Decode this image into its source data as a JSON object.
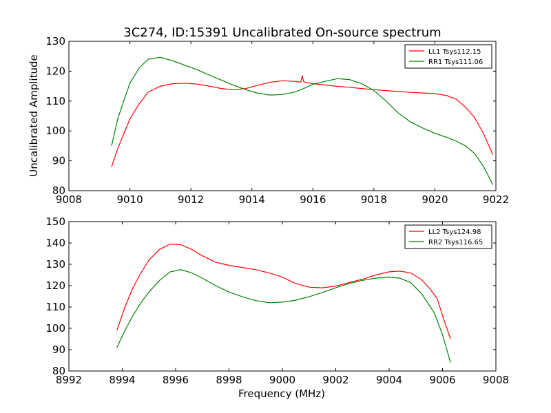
{
  "figure": {
    "title": "3C274, ID:15391 Uncalibrated On-source spectrum",
    "ylabel": "Uncalibrated Amplitude",
    "xlabel": "Frequency (MHz)"
  },
  "chart_data": [
    {
      "type": "line",
      "title": "3C274, ID:15391 Uncalibrated On-source spectrum",
      "xlabel": "",
      "ylabel": "Uncalibrated Amplitude",
      "xlim": [
        9008,
        9022
      ],
      "ylim": [
        80,
        130
      ],
      "xticks": [
        9008,
        9010,
        9012,
        9014,
        9016,
        9018,
        9020,
        9022
      ],
      "yticks": [
        80,
        90,
        100,
        110,
        120,
        130
      ],
      "grid": false,
      "legend_position": "top-right",
      "series": [
        {
          "name": "LL1 Tsys112.15",
          "color": "#ff0000",
          "x": [
            9009.4,
            9009.6,
            9009.8,
            9010.0,
            9010.3,
            9010.6,
            9011.0,
            9011.4,
            9011.8,
            9012.2,
            9012.6,
            9013.0,
            9013.4,
            9013.8,
            9014.2,
            9014.6,
            9015.0,
            9015.4,
            9015.6,
            9015.65,
            9015.7,
            9016.0,
            9016.4,
            9016.8,
            9017.2,
            9017.6,
            9018.0,
            9018.4,
            9018.8,
            9019.2,
            9019.6,
            9020.0,
            9020.4,
            9020.7,
            9021.0,
            9021.3,
            9021.6,
            9021.9
          ],
          "y": [
            88,
            94,
            99,
            104,
            109,
            113,
            115,
            115.8,
            116,
            115.7,
            115,
            114.2,
            113.8,
            114.2,
            115.3,
            116.3,
            116.8,
            116.6,
            116.3,
            118.5,
            116.4,
            115.8,
            115.4,
            114.9,
            114.6,
            114.2,
            113.8,
            113.5,
            113.2,
            112.9,
            112.7,
            112.5,
            111.8,
            110.6,
            108,
            104.5,
            99,
            92
          ]
        },
        {
          "name": "RR1 Tsys111.06",
          "color": "#008000",
          "x": [
            9009.4,
            9009.6,
            9009.8,
            9010.0,
            9010.3,
            9010.6,
            9011.0,
            9011.4,
            9011.8,
            9012.2,
            9012.6,
            9013.0,
            9013.4,
            9013.8,
            9014.2,
            9014.6,
            9015.0,
            9015.4,
            9015.7,
            9016.0,
            9016.4,
            9016.8,
            9017.2,
            9017.6,
            9018.0,
            9018.4,
            9018.8,
            9019.2,
            9019.6,
            9020.0,
            9020.4,
            9020.7,
            9021.0,
            9021.3,
            9021.6,
            9021.9
          ],
          "y": [
            95,
            104,
            110,
            116,
            121,
            124,
            124.6,
            123.5,
            122,
            120.5,
            118.7,
            117,
            115.3,
            113.8,
            112.6,
            112,
            112.2,
            113,
            114.2,
            115.6,
            116.6,
            117.5,
            117.2,
            115.8,
            113.5,
            110,
            106,
            103,
            101,
            99.2,
            97.8,
            96.6,
            95,
            92.5,
            88,
            82
          ]
        }
      ]
    },
    {
      "type": "line",
      "title": "",
      "xlabel": "Frequency (MHz)",
      "ylabel": "",
      "xlim": [
        8992,
        9008
      ],
      "ylim": [
        80,
        150
      ],
      "xticks": [
        8992,
        8994,
        8996,
        8998,
        9000,
        9002,
        9004,
        9006,
        9008
      ],
      "yticks": [
        80,
        90,
        100,
        110,
        120,
        130,
        140,
        150
      ],
      "grid": false,
      "legend_position": "top-right",
      "series": [
        {
          "name": "LL2 Tsys124.98",
          "color": "#ff0000",
          "x": [
            8993.8,
            8994.1,
            8994.4,
            8994.7,
            8995.0,
            8995.4,
            8995.8,
            8996.2,
            8996.6,
            8997.0,
            8997.5,
            8998.0,
            8998.5,
            8999.0,
            8999.5,
            9000.0,
            9000.5,
            9001.0,
            9001.5,
            9002.0,
            9002.5,
            9003.0,
            9003.5,
            9004.0,
            9004.4,
            9004.8,
            9005.2,
            9005.5,
            9005.8,
            9006.0,
            9006.3
          ],
          "y": [
            99,
            110,
            119,
            126,
            132,
            137,
            139.5,
            139.2,
            137,
            134,
            131,
            129.5,
            128.5,
            127.5,
            126,
            124,
            121,
            119.3,
            119,
            119.8,
            121.5,
            123,
            125,
            126.5,
            126.8,
            126,
            123,
            119,
            114,
            106,
            95
          ]
        },
        {
          "name": "RR2 Tsys116.65",
          "color": "#008000",
          "x": [
            8993.8,
            8994.1,
            8994.4,
            8994.7,
            8995.0,
            8995.4,
            8995.8,
            8996.2,
            8996.6,
            8997.0,
            8997.5,
            8998.0,
            8998.5,
            8999.0,
            8999.5,
            9000.0,
            9000.5,
            9001.0,
            9001.5,
            9002.0,
            9002.5,
            9003.0,
            9003.5,
            9004.0,
            9004.4,
            9004.8,
            9005.2,
            9005.5,
            9005.7,
            9006.0,
            9006.3
          ],
          "y": [
            91,
            99,
            106,
            112,
            117,
            122.5,
            126.5,
            127.5,
            126,
            123.5,
            120,
            117,
            114.8,
            113,
            112,
            112.3,
            113.2,
            114.8,
            116.8,
            119,
            121,
            122.5,
            123.5,
            124,
            123.5,
            121.5,
            116.5,
            111,
            107,
            97,
            84
          ]
        }
      ]
    }
  ]
}
